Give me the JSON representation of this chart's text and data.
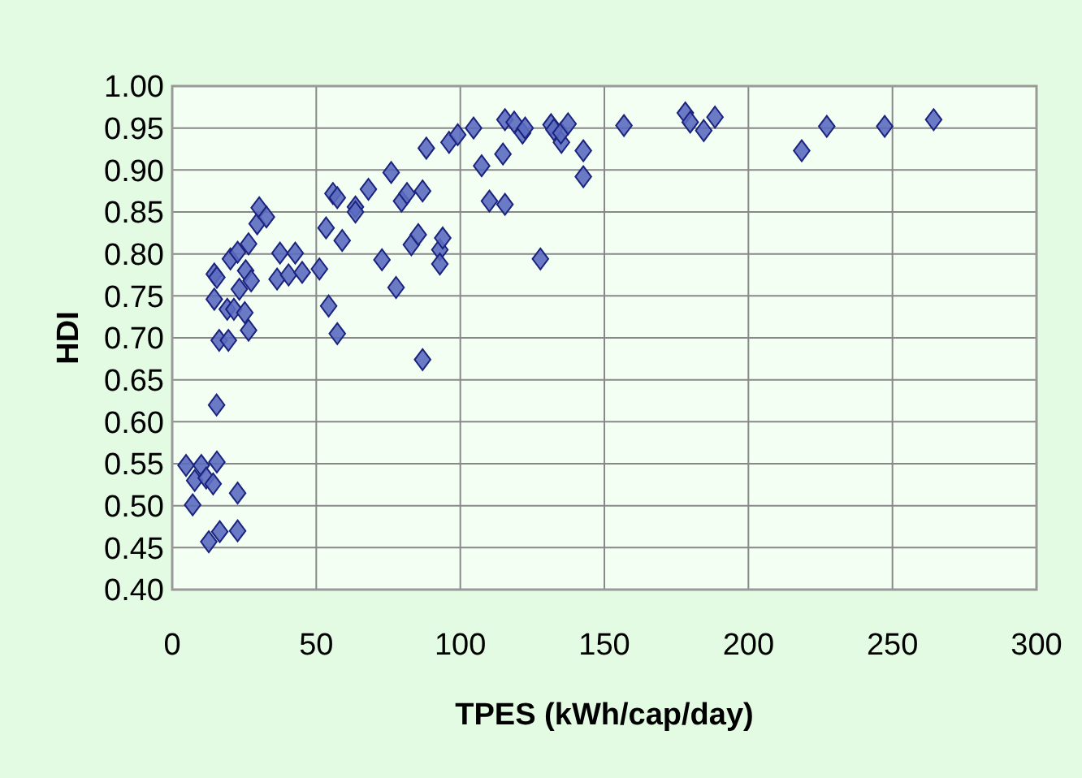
{
  "chart_data": {
    "type": "scatter",
    "xlabel": "TPES (kWh/cap/day)",
    "ylabel": "HDI",
    "xlim": [
      0,
      300
    ],
    "xticks": [
      0,
      50,
      100,
      150,
      200,
      250,
      300
    ],
    "ylim": [
      0.4,
      1.0
    ],
    "yticks": [
      {
        "value": 0.4,
        "label": "0.40"
      },
      {
        "value": 0.45,
        "label": "0.45"
      },
      {
        "value": 0.5,
        "label": "0.50"
      },
      {
        "value": 0.55,
        "label": "0.55"
      },
      {
        "value": 0.6,
        "label": "0.60"
      },
      {
        "value": 0.65,
        "label": "0.65"
      },
      {
        "value": 0.7,
        "label": "0.70"
      },
      {
        "value": 0.75,
        "label": "0.75"
      },
      {
        "value": 0.8,
        "label": "0.80"
      },
      {
        "value": 0.85,
        "label": "0.85"
      },
      {
        "value": 0.9,
        "label": "0.90"
      },
      {
        "value": 0.95,
        "label": "0.95"
      },
      {
        "value": 1.0,
        "label": "1.00"
      }
    ],
    "grid": true,
    "marker": "diamond",
    "series": [
      {
        "color": "#5c6bc0",
        "x": [
          4.8,
          10.1,
          15.5,
          7.8,
          11.8,
          14.2,
          7.1,
          22.7,
          12.7,
          16.5,
          22.7,
          15.4,
          16.3,
          19.5,
          26.5,
          14.6,
          19.1,
          21.4,
          25.2,
          23.3,
          14.6,
          15.5,
          25.5,
          27.4,
          20.2,
          22.7,
          26.5,
          29.5,
          30.2,
          32.7,
          37.4,
          42.7,
          36.4,
          40.4,
          45.1,
          51.1,
          53.4,
          54.3,
          57.3,
          55.8,
          57.3,
          59.0,
          63.6,
          63.6,
          68.1,
          72.8,
          76.0,
          77.7,
          79.6,
          81.5,
          83.0,
          85.4,
          86.9,
          86.9,
          88.2,
          92.9,
          93.9,
          92.9,
          96.1,
          99.1,
          104.6,
          107.4,
          110.1,
          115.5,
          114.8,
          115.5,
          118.7,
          121.6,
          122.5,
          127.8,
          131.5,
          132.5,
          135.1,
          134.9,
          137.4,
          142.7,
          142.7,
          156.8,
          178.1,
          179.8,
          184.5,
          188.4,
          218.5,
          227.2,
          247.3,
          264.3
        ],
        "values": [
          0.548,
          0.548,
          0.552,
          0.53,
          0.533,
          0.526,
          0.501,
          0.515,
          0.457,
          0.469,
          0.47,
          0.62,
          0.697,
          0.697,
          0.709,
          0.746,
          0.734,
          0.734,
          0.73,
          0.758,
          0.776,
          0.772,
          0.78,
          0.768,
          0.794,
          0.802,
          0.812,
          0.836,
          0.855,
          0.844,
          0.801,
          0.801,
          0.77,
          0.775,
          0.778,
          0.782,
          0.831,
          0.738,
          0.705,
          0.872,
          0.867,
          0.816,
          0.856,
          0.85,
          0.877,
          0.793,
          0.897,
          0.76,
          0.863,
          0.872,
          0.811,
          0.823,
          0.875,
          0.674,
          0.926,
          0.805,
          0.819,
          0.788,
          0.933,
          0.942,
          0.95,
          0.905,
          0.863,
          0.859,
          0.919,
          0.96,
          0.957,
          0.944,
          0.95,
          0.794,
          0.954,
          0.948,
          0.933,
          0.944,
          0.955,
          0.923,
          0.892,
          0.953,
          0.968,
          0.957,
          0.947,
          0.963,
          0.923,
          0.952,
          0.952,
          0.96
        ]
      }
    ]
  }
}
